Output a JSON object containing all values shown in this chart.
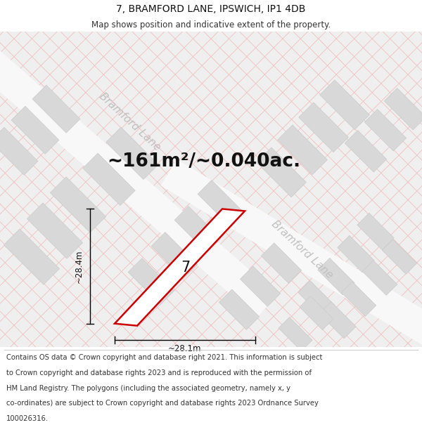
{
  "title_line1": "7, BRAMFORD LANE, IPSWICH, IP1 4DB",
  "title_line2": "Map shows position and indicative extent of the property.",
  "area_text": "~161m²/~0.040ac.",
  "label_number": "7",
  "dim_width": "~28.1m",
  "dim_height": "~28.4m",
  "road_label_upper": "Bramford Lane",
  "road_label_lower": "Bramford Lane",
  "footer_lines": [
    "Contains OS data © Crown copyright and database right 2021. This information is subject",
    "to Crown copyright and database rights 2023 and is reproduced with the permission of",
    "HM Land Registry. The polygons (including the associated geometry, namely x, y",
    "co-ordinates) are subject to Crown copyright and database rights 2023 Ordnance Survey",
    "100026316."
  ],
  "bg_color": "#ffffff",
  "map_bg": "#efefef",
  "plot_fill": "#ffffff",
  "plot_edge": "#cc0000",
  "road_color": "#f8f8f8",
  "grid_line_color": "#f0c0c0",
  "block_color": "#d8d8d8",
  "block_edge": "#cccccc",
  "road_label_color": "#c0c0c0",
  "title_fontsize": 10,
  "subtitle_fontsize": 8.5,
  "area_fontsize": 19,
  "label_fontsize": 15,
  "dim_fontsize": 8.5,
  "road_label_fontsize": 11,
  "footer_fontsize": 7.2
}
